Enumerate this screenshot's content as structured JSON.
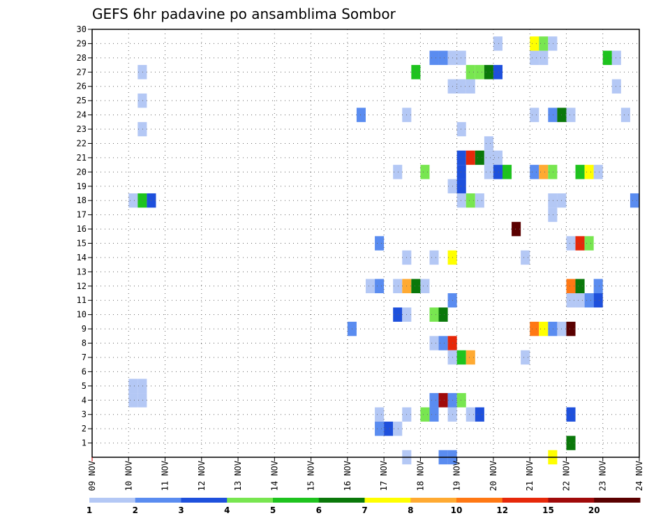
{
  "chart_data": {
    "type": "heatmap",
    "title": "GEFS 6hr padavine po ansamblima Sombor",
    "xlabel": "",
    "ylabel": "",
    "x_range_days": [
      9,
      24
    ],
    "y_range": [
      0,
      30
    ],
    "grid": true,
    "y_ticks": [
      "1",
      "2",
      "3",
      "4",
      "5",
      "6",
      "7",
      "8",
      "9",
      "10",
      "11",
      "12",
      "13",
      "14",
      "15",
      "16",
      "17",
      "18",
      "19",
      "20",
      "21",
      "22",
      "23",
      "24",
      "25",
      "26",
      "27",
      "28",
      "29",
      "30"
    ],
    "x_ticks": [
      "09 NOV",
      "10 NOV",
      "11 NOV",
      "12 NOV",
      "13 NOV",
      "14 NOV",
      "15 NOV",
      "16 NOV",
      "17 NOV",
      "18 NOV",
      "19 NOV",
      "20 NOV",
      "21 NOV",
      "22 NOV",
      "23 NOV",
      "24 NOV"
    ],
    "colorbar": {
      "labels": [
        "1",
        "2",
        "3",
        "4",
        "5",
        "6",
        "7",
        "8",
        "10",
        "12",
        "15",
        "20"
      ],
      "colors": [
        "#b4c8f5",
        "#5a8cf0",
        "#1e50dc",
        "#78e650",
        "#1ec31e",
        "#0a780a",
        "#ffff00",
        "#ffaa32",
        "#ff7814",
        "#e6280a",
        "#a00a0a",
        "#5a0000"
      ]
    },
    "cells": [
      {
        "t": 10.125,
        "m": 5,
        "c": 1
      },
      {
        "t": 10.125,
        "m": 4,
        "c": 1
      },
      {
        "t": 10.375,
        "m": 5,
        "c": 1
      },
      {
        "t": 10.375,
        "m": 4,
        "c": 1
      },
      {
        "t": 10.125,
        "m": 18,
        "c": 1
      },
      {
        "t": 10.375,
        "m": 18,
        "c": 5
      },
      {
        "t": 10.625,
        "m": 18,
        "c": 3
      },
      {
        "t": 10.375,
        "m": 23,
        "c": 1
      },
      {
        "t": 10.375,
        "m": 25,
        "c": 1
      },
      {
        "t": 10.375,
        "m": 27,
        "c": 1
      },
      {
        "t": 16.125,
        "m": 9,
        "c": 2
      },
      {
        "t": 16.375,
        "m": 24,
        "c": 2
      },
      {
        "t": 16.625,
        "m": 12,
        "c": 1
      },
      {
        "t": 16.875,
        "m": 12,
        "c": 2
      },
      {
        "t": 16.875,
        "m": 15,
        "c": 2
      },
      {
        "t": 16.875,
        "m": 3,
        "c": 1
      },
      {
        "t": 16.875,
        "m": 2,
        "c": 2
      },
      {
        "t": 17.125,
        "m": 2,
        "c": 3
      },
      {
        "t": 17.375,
        "m": 2,
        "c": 1
      },
      {
        "t": 17.375,
        "m": 10,
        "c": 3
      },
      {
        "t": 17.625,
        "m": 10,
        "c": 1
      },
      {
        "t": 17.375,
        "m": 12,
        "c": 1
      },
      {
        "t": 17.625,
        "m": 12,
        "c": 8
      },
      {
        "t": 17.875,
        "m": 12,
        "c": 6
      },
      {
        "t": 18.125,
        "m": 12,
        "c": 1
      },
      {
        "t": 17.625,
        "m": 14,
        "c": 1
      },
      {
        "t": 17.375,
        "m": 20,
        "c": 1
      },
      {
        "t": 17.625,
        "m": 24,
        "c": 1
      },
      {
        "t": 17.625,
        "m": 3,
        "c": 1
      },
      {
        "t": 17.625,
        "m": 0,
        "c": 1
      },
      {
        "t": 17.875,
        "m": 27,
        "c": 5
      },
      {
        "t": 18.125,
        "m": 20,
        "c": 4
      },
      {
        "t": 18.125,
        "m": 3,
        "c": 4
      },
      {
        "t": 18.375,
        "m": 3,
        "c": 2
      },
      {
        "t": 18.375,
        "m": 4,
        "c": 2
      },
      {
        "t": 18.625,
        "m": 4,
        "c": 11
      },
      {
        "t": 18.875,
        "m": 4,
        "c": 2
      },
      {
        "t": 19.125,
        "m": 4,
        "c": 4
      },
      {
        "t": 18.375,
        "m": 8,
        "c": 1
      },
      {
        "t": 18.625,
        "m": 8,
        "c": 2
      },
      {
        "t": 18.875,
        "m": 8,
        "c": 10
      },
      {
        "t": 18.375,
        "m": 10,
        "c": 4
      },
      {
        "t": 18.625,
        "m": 10,
        "c": 6
      },
      {
        "t": 18.375,
        "m": 14,
        "c": 1
      },
      {
        "t": 18.875,
        "m": 14,
        "c": 7
      },
      {
        "t": 18.375,
        "m": 28,
        "c": 2
      },
      {
        "t": 18.625,
        "m": 28,
        "c": 2
      },
      {
        "t": 18.875,
        "m": 28,
        "c": 1
      },
      {
        "t": 19.125,
        "m": 28,
        "c": 1
      },
      {
        "t": 18.625,
        "m": 0,
        "c": 2
      },
      {
        "t": 18.875,
        "m": 0,
        "c": 2
      },
      {
        "t": 18.875,
        "m": 3,
        "c": 1
      },
      {
        "t": 18.875,
        "m": 7,
        "c": 1
      },
      {
        "t": 19.125,
        "m": 7,
        "c": 5
      },
      {
        "t": 19.375,
        "m": 7,
        "c": 8
      },
      {
        "t": 18.875,
        "m": 11,
        "c": 2
      },
      {
        "t": 18.875,
        "m": 19,
        "c": 1
      },
      {
        "t": 19.125,
        "m": 19,
        "c": 3
      },
      {
        "t": 19.125,
        "m": 20,
        "c": 3
      },
      {
        "t": 18.875,
        "m": 26,
        "c": 1
      },
      {
        "t": 19.125,
        "m": 26,
        "c": 1
      },
      {
        "t": 19.375,
        "m": 26,
        "c": 1
      },
      {
        "t": 19.125,
        "m": 21,
        "c": 3
      },
      {
        "t": 19.375,
        "m": 21,
        "c": 10
      },
      {
        "t": 19.625,
        "m": 21,
        "c": 6
      },
      {
        "t": 19.875,
        "m": 21,
        "c": 1
      },
      {
        "t": 20.125,
        "m": 21,
        "c": 1
      },
      {
        "t": 19.875,
        "m": 22,
        "c": 1
      },
      {
        "t": 19.875,
        "m": 20,
        "c": 1
      },
      {
        "t": 20.125,
        "m": 20,
        "c": 3
      },
      {
        "t": 20.375,
        "m": 20,
        "c": 5
      },
      {
        "t": 19.125,
        "m": 18,
        "c": 1
      },
      {
        "t": 19.375,
        "m": 18,
        "c": 4
      },
      {
        "t": 19.625,
        "m": 18,
        "c": 1
      },
      {
        "t": 19.125,
        "m": 23,
        "c": 1
      },
      {
        "t": 19.375,
        "m": 27,
        "c": 4
      },
      {
        "t": 19.625,
        "m": 27,
        "c": 4
      },
      {
        "t": 19.875,
        "m": 27,
        "c": 6
      },
      {
        "t": 20.125,
        "m": 27,
        "c": 3
      },
      {
        "t": 19.375,
        "m": 3,
        "c": 1
      },
      {
        "t": 19.625,
        "m": 3,
        "c": 3
      },
      {
        "t": 20.125,
        "m": 29,
        "c": 1
      },
      {
        "t": 20.625,
        "m": 16,
        "c": 12
      },
      {
        "t": 20.875,
        "m": 7,
        "c": 1
      },
      {
        "t": 20.875,
        "m": 14,
        "c": 1
      },
      {
        "t": 21.125,
        "m": 9,
        "c": 9
      },
      {
        "t": 21.375,
        "m": 9,
        "c": 7
      },
      {
        "t": 21.625,
        "m": 9,
        "c": 2
      },
      {
        "t": 21.875,
        "m": 9,
        "c": 1
      },
      {
        "t": 22.125,
        "m": 9,
        "c": 12
      },
      {
        "t": 21.125,
        "m": 20,
        "c": 2
      },
      {
        "t": 21.375,
        "m": 20,
        "c": 8
      },
      {
        "t": 21.625,
        "m": 20,
        "c": 4
      },
      {
        "t": 21.125,
        "m": 24,
        "c": 1
      },
      {
        "t": 21.625,
        "m": 24,
        "c": 2
      },
      {
        "t": 21.875,
        "m": 24,
        "c": 6
      },
      {
        "t": 22.125,
        "m": 24,
        "c": 1
      },
      {
        "t": 21.125,
        "m": 28,
        "c": 1
      },
      {
        "t": 21.375,
        "m": 28,
        "c": 1
      },
      {
        "t": 21.125,
        "m": 29,
        "c": 7
      },
      {
        "t": 21.375,
        "m": 29,
        "c": 4
      },
      {
        "t": 21.625,
        "m": 29,
        "c": 1
      },
      {
        "t": 21.625,
        "m": 18,
        "c": 1
      },
      {
        "t": 21.875,
        "m": 18,
        "c": 1
      },
      {
        "t": 21.625,
        "m": 17,
        "c": 1
      },
      {
        "t": 21.625,
        "m": 0,
        "c": 7
      },
      {
        "t": 22.125,
        "m": 1,
        "c": 6
      },
      {
        "t": 22.125,
        "m": 3,
        "c": 3
      },
      {
        "t": 22.125,
        "m": 11,
        "c": 1
      },
      {
        "t": 22.375,
        "m": 11,
        "c": 1
      },
      {
        "t": 22.625,
        "m": 11,
        "c": 2
      },
      {
        "t": 22.875,
        "m": 11,
        "c": 3
      },
      {
        "t": 22.125,
        "m": 12,
        "c": 9
      },
      {
        "t": 22.375,
        "m": 12,
        "c": 6
      },
      {
        "t": 22.875,
        "m": 12,
        "c": 2
      },
      {
        "t": 22.125,
        "m": 15,
        "c": 1
      },
      {
        "t": 22.375,
        "m": 15,
        "c": 10
      },
      {
        "t": 22.625,
        "m": 15,
        "c": 4
      },
      {
        "t": 22.375,
        "m": 20,
        "c": 5
      },
      {
        "t": 22.625,
        "m": 20,
        "c": 7
      },
      {
        "t": 22.875,
        "m": 20,
        "c": 1
      },
      {
        "t": 23.125,
        "m": 28,
        "c": 5
      },
      {
        "t": 23.375,
        "m": 28,
        "c": 1
      },
      {
        "t": 23.375,
        "m": 26,
        "c": 1
      },
      {
        "t": 23.625,
        "m": 24,
        "c": 1
      },
      {
        "t": 23.875,
        "m": 18,
        "c": 2
      }
    ]
  }
}
